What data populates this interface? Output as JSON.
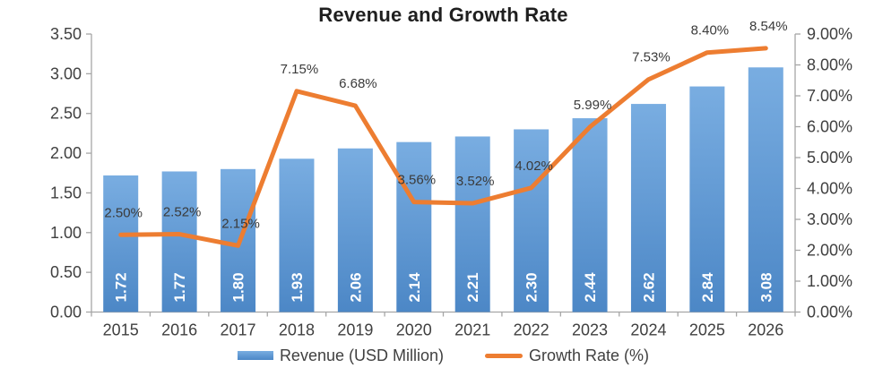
{
  "chart": {
    "title": "Revenue and Growth Rate",
    "legend": {
      "revenue": "Revenue (USD Million)",
      "growth": "Growth Rate (%)"
    }
  },
  "chart_data": {
    "type": "combo-bar-line",
    "title": "Revenue and Growth Rate",
    "categories": [
      "2015",
      "2016",
      "2017",
      "2018",
      "2019",
      "2020",
      "2021",
      "2022",
      "2023",
      "2024",
      "2025",
      "2026"
    ],
    "series": [
      {
        "name": "Revenue (USD Million)",
        "type": "bar",
        "axis": "left",
        "values": [
          1.72,
          1.77,
          1.8,
          1.93,
          2.06,
          2.14,
          2.21,
          2.3,
          2.44,
          2.62,
          2.84,
          3.08
        ],
        "labels": [
          "1.72",
          "1.77",
          "1.80",
          "1.93",
          "2.06",
          "2.14",
          "2.21",
          "2.30",
          "2.44",
          "2.62",
          "2.84",
          "3.08"
        ],
        "color_top": "#79ADE1",
        "color_bottom": "#4C87C6"
      },
      {
        "name": "Growth Rate (%)",
        "type": "line",
        "axis": "right",
        "values": [
          2.5,
          2.52,
          2.15,
          7.15,
          6.68,
          3.56,
          3.52,
          4.02,
          5.99,
          7.53,
          8.4,
          8.54
        ],
        "labels": [
          "2.50%",
          "2.52%",
          "2.15%",
          "7.15%",
          "6.68%",
          "3.56%",
          "3.52%",
          "4.02%",
          "5.99%",
          "7.53%",
          "8.40%",
          "8.54%"
        ],
        "color": "#ED7D31"
      }
    ],
    "axes": {
      "left": {
        "min": 0,
        "max": 3.5,
        "step": 0.5,
        "tick_labels": [
          "0.00",
          "0.50",
          "1.00",
          "1.50",
          "2.00",
          "2.50",
          "3.00",
          "3.50"
        ]
      },
      "right": {
        "min": 0,
        "max": 9,
        "step": 1,
        "tick_labels": [
          "0.00%",
          "1.00%",
          "2.00%",
          "3.00%",
          "4.00%",
          "5.00%",
          "6.00%",
          "7.00%",
          "8.00%",
          "9.00%"
        ]
      }
    },
    "grid": false,
    "legend_position": "bottom",
    "colors": {
      "axis_line": "#A6A6A6",
      "axis_text": "#404040",
      "data_label": "#3a3a3a",
      "bar_value_text": "#ffffff"
    }
  }
}
